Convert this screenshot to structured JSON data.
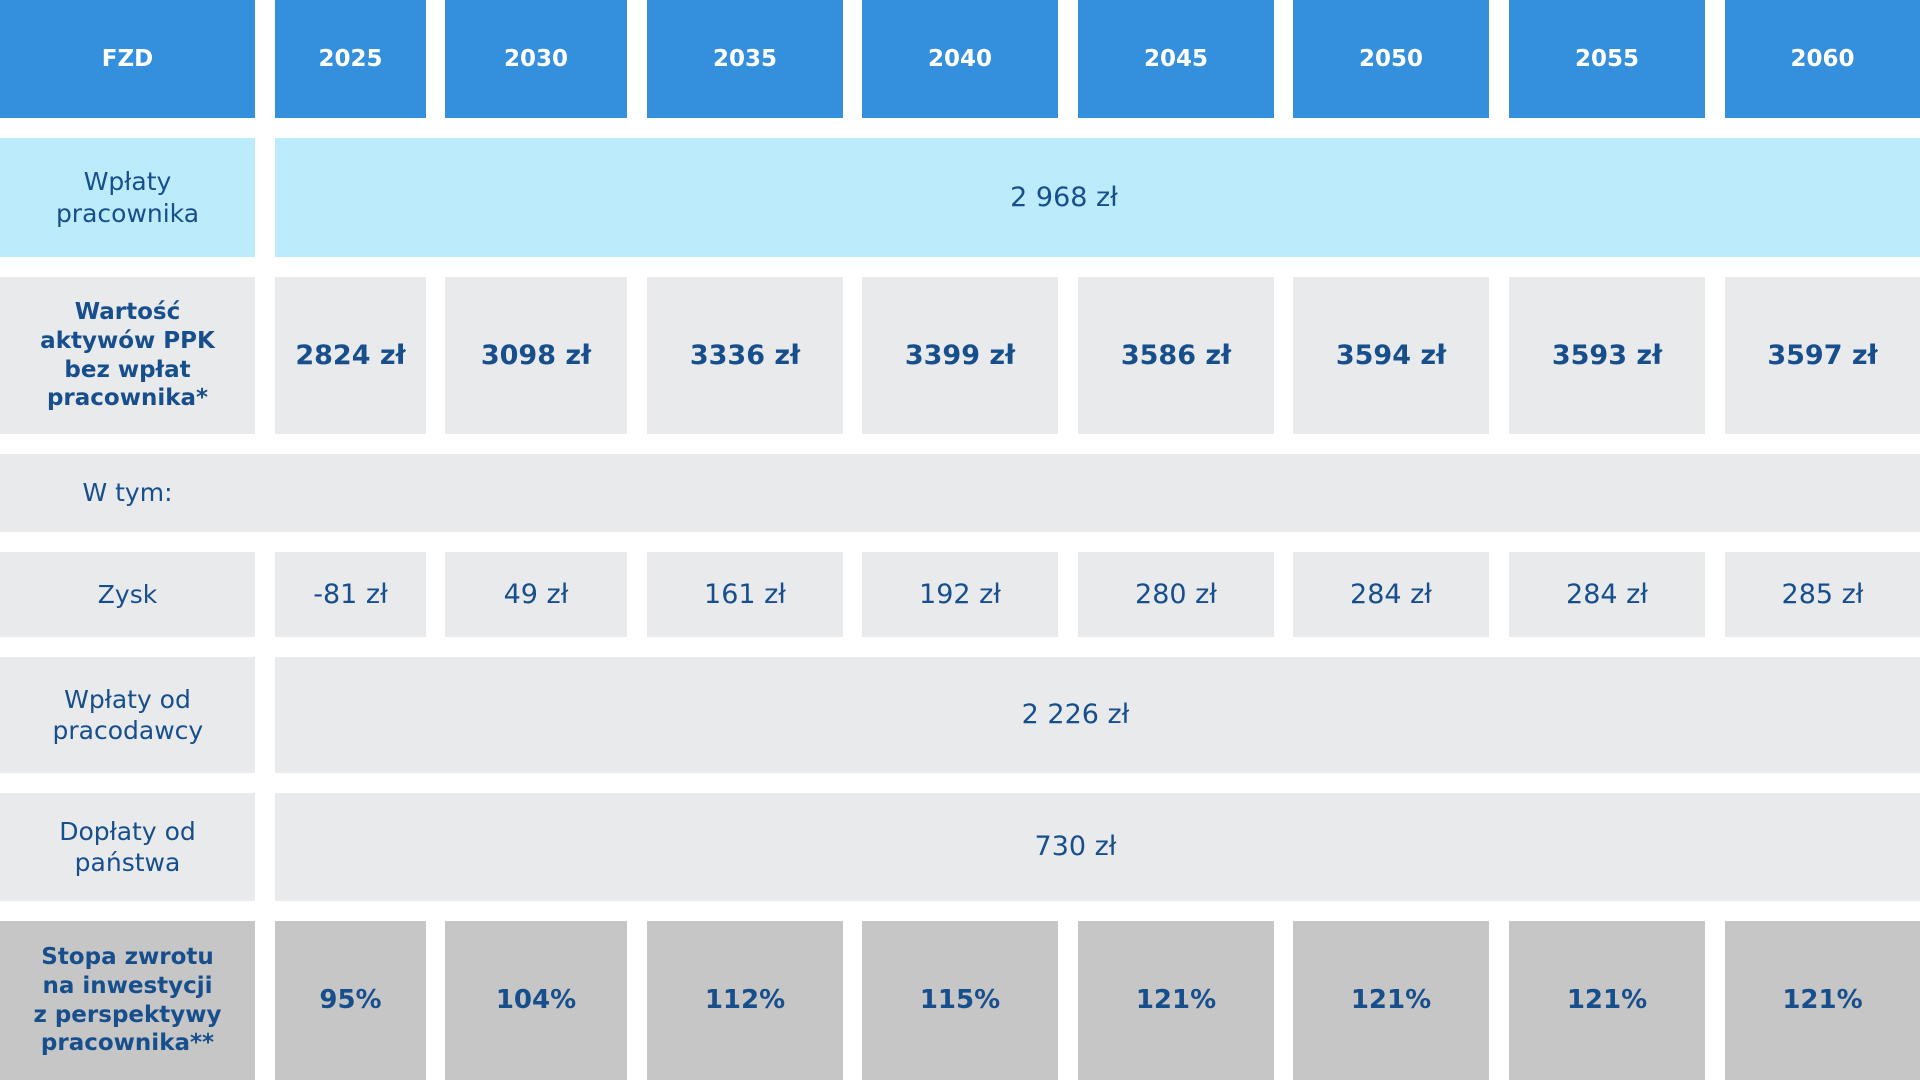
{
  "header": {
    "label": "FZD",
    "years": [
      "2025",
      "2030",
      "2035",
      "2040",
      "2045",
      "2050",
      "2055",
      "2060"
    ]
  },
  "rows": {
    "employee_contributions": {
      "label": "Wpłaty pracownika",
      "value": "2 968 zł"
    },
    "asset_value": {
      "label": "Wartość aktywów PPK bez wpłat pracownika*",
      "values": [
        "2824 zł",
        "3098 zł",
        "3336 zł",
        "3399 zł",
        "3586 zł",
        "3594 zł",
        "3593 zł",
        "3597 zł"
      ]
    },
    "including": {
      "label": "W tym:"
    },
    "profit": {
      "label": "Zysk",
      "values": [
        "-81 zł",
        "49 zł",
        "161 zł",
        "192 zł",
        "280 zł",
        "284 zł",
        "284 zł",
        "285 zł"
      ]
    },
    "employer_contributions": {
      "label": "Wpłaty od pracodawcy",
      "value": "2 226 zł"
    },
    "state_subsidies": {
      "label": "Dopłaty od państwa",
      "value": "730 zł"
    },
    "return_rate": {
      "label": "Stopa zwrotu na inwestycji z perspektywy pracownika**",
      "values": [
        "95%",
        "104%",
        "112%",
        "115%",
        "121%",
        "121%",
        "121%",
        "121%"
      ]
    }
  },
  "colors": {
    "header": "#348fdc",
    "light_blue": "#bcecfb",
    "gray": "#e9eaec",
    "dark_gray": "#c6c6c6",
    "text_blue": "#174e8c"
  }
}
